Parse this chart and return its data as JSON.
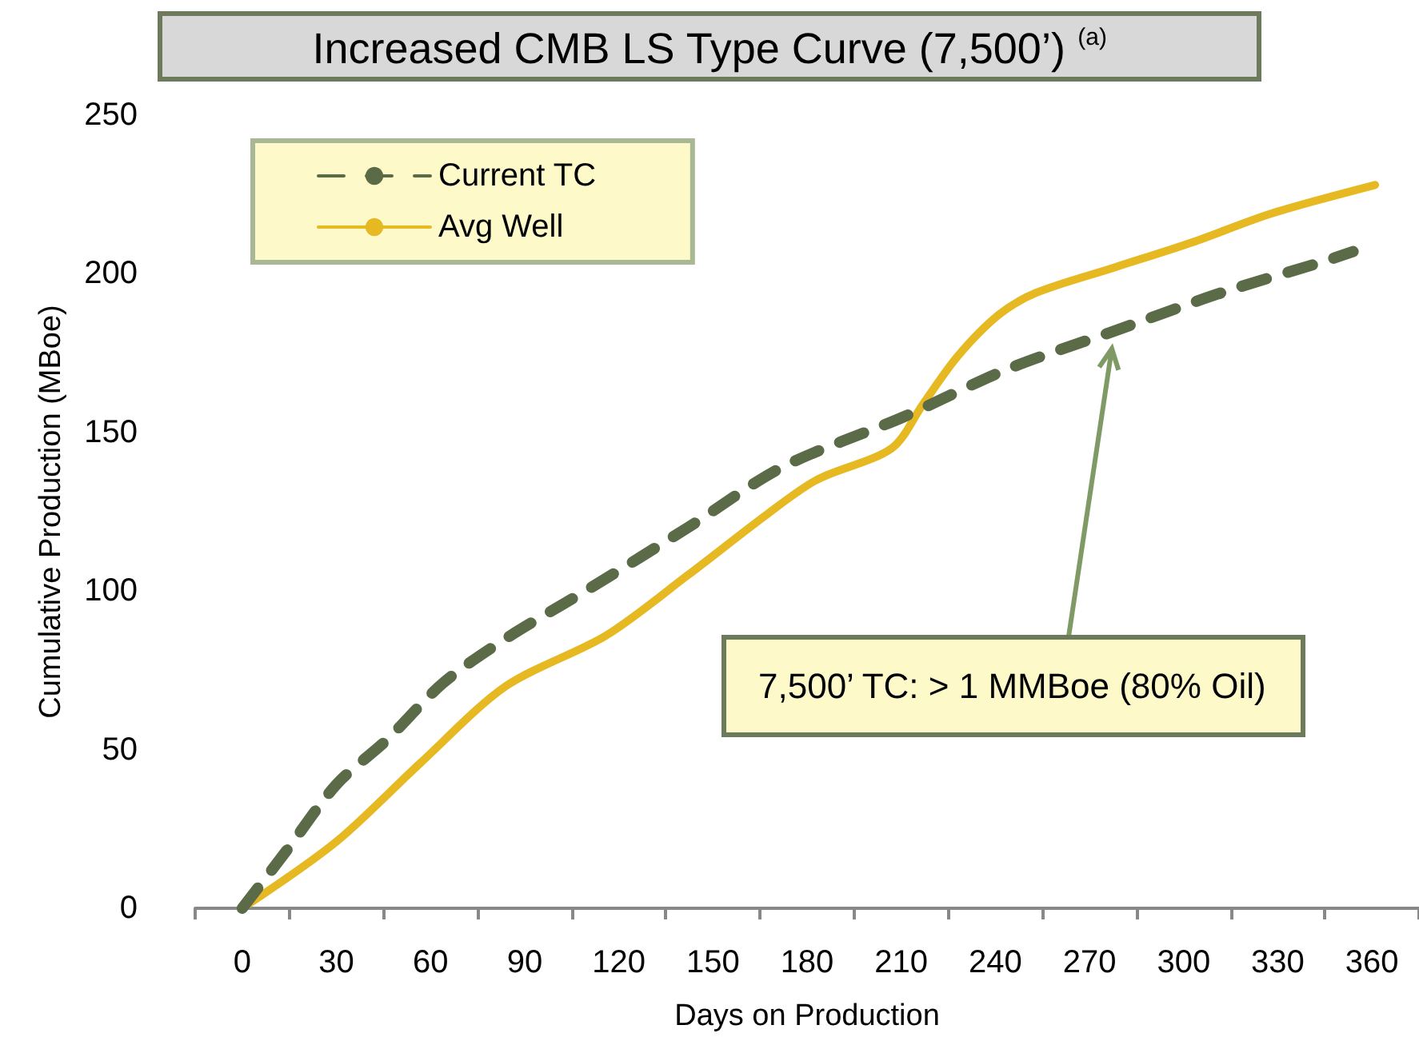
{
  "chart_data": {
    "type": "line",
    "title": "Increased CMB LS Type Curve (7,500’) $^{(a)}$",
    "xlabel": "Days on Production",
    "ylabel": "Cumulative Production (MBoe)",
    "xlim": [
      -15,
      375
    ],
    "xticks": [
      {
        "value": -15,
        "label": null
      },
      0,
      {
        "value": 15,
        "label": null
      },
      30,
      {
        "value": 45,
        "label": null
      },
      60,
      {
        "value": 75,
        "label": null
      },
      90,
      {
        "value": 105,
        "label": null
      },
      120,
      {
        "value": 135,
        "label": null
      },
      150,
      {
        "value": 165,
        "label": null
      },
      180,
      {
        "value": 195,
        "label": null
      },
      210,
      {
        "value": 225,
        "label": null
      },
      240,
      {
        "value": 255,
        "label": null
      },
      270,
      {
        "value": 285,
        "label": null
      },
      300,
      {
        "value": 315,
        "label": null
      },
      330,
      {
        "value": 345,
        "label": null
      },
      360,
      {
        "value": 375,
        "label": null
      }
    ],
    "ylim": [
      0,
      250
    ],
    "yticks": [
      0,
      50,
      100,
      150,
      200,
      250
    ],
    "grid": false,
    "legend": "top left",
    "marker": "none",
    "series": [
      {
        "name": "Current TC",
        "color": "#5b6b47",
        "line_style": "dashed",
        "x": [
          0,
          14,
          30,
          46,
          64,
          84,
          111,
          142,
          172,
          211,
          244,
          278,
          312,
          345,
          354
        ],
        "values": [
          0,
          18,
          39,
          53,
          71,
          85,
          101,
          120,
          139,
          155,
          170,
          182,
          194,
          204,
          207
        ]
      },
      {
        "name": "Avg Well",
        "color": "#e6b923",
        "line_style": "solid",
        "x": [
          0,
          30,
          57,
          84,
          116,
          142,
          167,
          183,
          207,
          217,
          228,
          241,
          253,
          278,
          303,
          328,
          361
        ],
        "values": [
          0,
          21,
          46,
          70,
          86,
          105,
          124,
          135,
          145,
          159,
          174,
          187,
          194,
          202,
          210,
          219,
          228
        ]
      }
    ],
    "annotations": [
      "7,500’ TC: > 1 MMBoe (80% Oil)"
    ]
  }
}
